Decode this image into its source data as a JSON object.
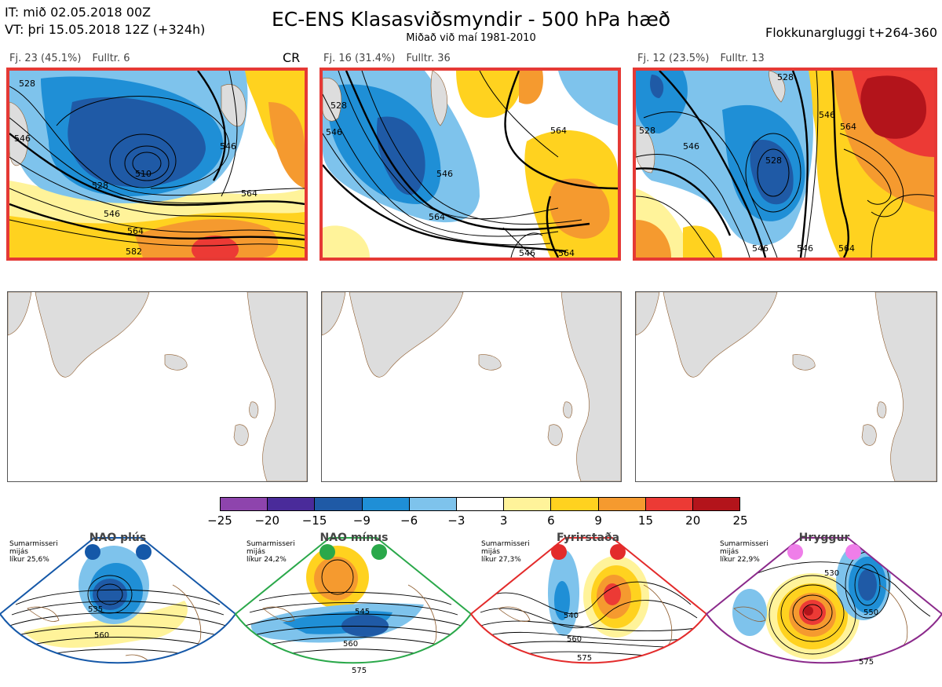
{
  "header": {
    "it_line": "IT: mið 02.05.2018 00Z",
    "vt_line": "VT: þri 15.05.2018 12Z  (+324h)",
    "title": "EC-ENS Klasasviðsmyndir - 500 hPa hæð",
    "subtitle": "Miðað við maí 1981-2010",
    "window": "Flokkunargluggi t+264-360"
  },
  "panels": [
    {
      "fj": "Fj. 23 (45.1%)",
      "fulltr": "Fulltr. 6",
      "tag": "CR",
      "contour_labels": [
        "528",
        "546",
        "510",
        "528",
        "546",
        "564",
        "564",
        "582",
        "546"
      ]
    },
    {
      "fj": "Fj. 16 (31.4%)",
      "fulltr": "Fulltr. 36",
      "tag": "",
      "contour_labels": [
        "528",
        "546",
        "546",
        "564",
        "564",
        "546",
        "564"
      ]
    },
    {
      "fj": "Fj. 12 (23.5%)",
      "fulltr": "Fulltr. 13",
      "tag": "",
      "contour_labels": [
        "528",
        "546",
        "528",
        "546",
        "546",
        "564",
        "564",
        "546",
        "528"
      ]
    }
  ],
  "colorbar": {
    "colors": [
      "#8e44ad",
      "#4a2b9a",
      "#1f5aa6",
      "#1f8fd6",
      "#7ec3ec",
      "#ffffff",
      "#fff39a",
      "#ffd21f",
      "#f59a2f",
      "#ec3a35",
      "#b3141b"
    ],
    "ticks": [
      "−25",
      "−20",
      "−15",
      "−9",
      "−6",
      "−3",
      "3",
      "6",
      "9",
      "15",
      "20",
      "25"
    ]
  },
  "regimes": [
    {
      "name": "NAO plús",
      "note_1": "Sumarmisseri",
      "note_2": "mijás",
      "note_3": "líkur 25,6%",
      "color": "#1558a8",
      "dot_color": "#1558a8",
      "contour_labels": [
        "535",
        "560"
      ]
    },
    {
      "name": "NAO mínus",
      "note_1": "Sumarmisseri",
      "note_2": "mijás",
      "note_3": "líkur 24,2%",
      "color": "#2aa84a",
      "dot_color": "#2aa84a",
      "contour_labels": [
        "545",
        "560",
        "575"
      ]
    },
    {
      "name": "Fyrirstaða",
      "note_1": "Sumarmisseri",
      "note_2": "mijás",
      "note_3": "líkur 27,3%",
      "color": "#e32b2b",
      "dot_color": "#e32b2b",
      "contour_labels": [
        "540",
        "560",
        "575"
      ]
    },
    {
      "name": "Hryggur",
      "note_1": "Sumarmisseri",
      "note_2": "mijás",
      "note_3": "líkur 22,9%",
      "color": "#8b2a8b",
      "dot_color": "#ef7ee9",
      "contour_labels": [
        "530",
        "550",
        "575"
      ]
    }
  ]
}
